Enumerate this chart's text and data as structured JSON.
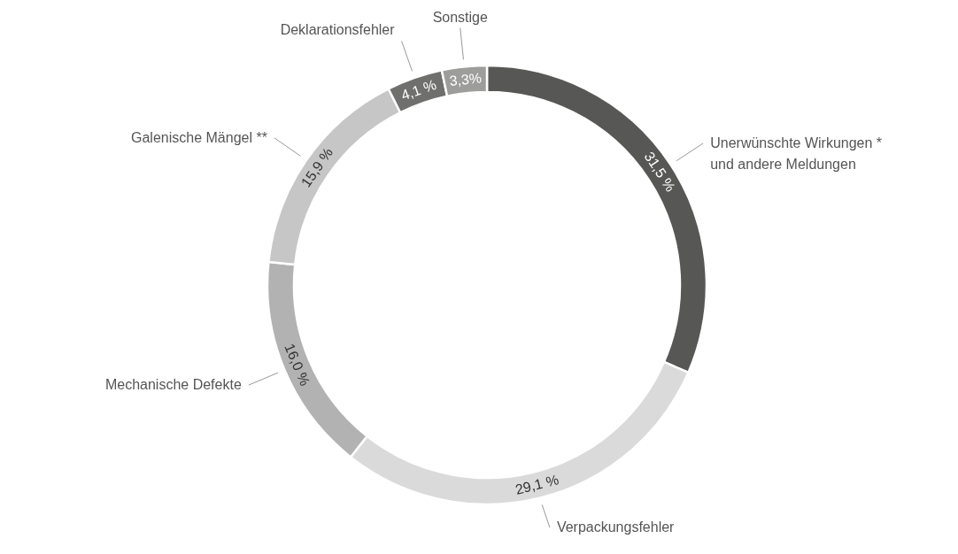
{
  "chart_data": {
    "type": "donut",
    "categories": [
      "Unerwünschte Wirkungen *\nund andere Meldungen",
      "Verpackungsfehler",
      "Mechanische Defekte",
      "Galenische Mängel **",
      "Deklarationsfehler",
      "Sonstige"
    ],
    "values": [
      31.5,
      29.1,
      16.0,
      15.9,
      4.1,
      3.3
    ],
    "colors": [
      "#575756",
      "#dadada",
      "#b2b2b2",
      "#c6c6c6",
      "#6f6f6e",
      "#9d9d9c"
    ],
    "value_labels": [
      "31,5 %",
      "29,1 %",
      "16,0 %",
      "15,9 %",
      "4,1 %",
      "3,3%"
    ]
  }
}
